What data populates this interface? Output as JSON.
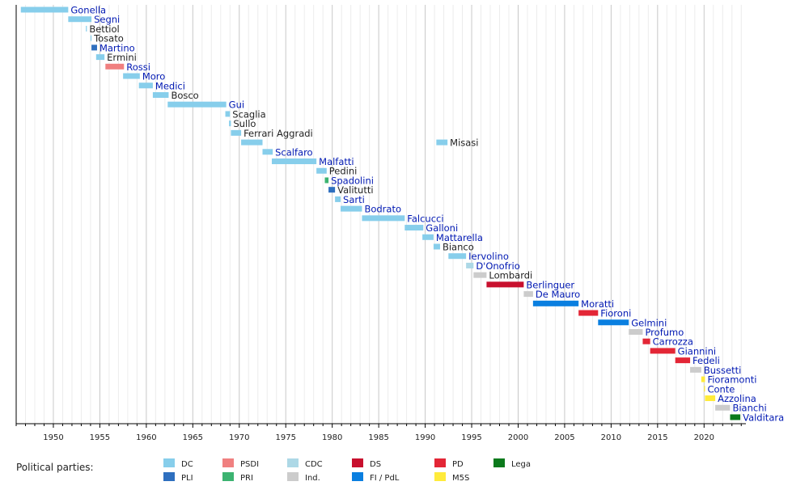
{
  "chart_data": {
    "type": "timeline",
    "xlim": [
      1946,
      2024.5
    ],
    "x_ticks": [
      1950,
      1955,
      1960,
      1965,
      1970,
      1975,
      1980,
      1985,
      1990,
      1995,
      2000,
      2005,
      2010,
      2015,
      2020
    ],
    "grid": true,
    "legend_title": "Political parties:",
    "parties": [
      {
        "key": "DC",
        "label": "DC",
        "color": "#87ceeb"
      },
      {
        "key": "PLI",
        "label": "PLI",
        "color": "#2e6fbf"
      },
      {
        "key": "PSDI",
        "label": "PSDI",
        "color": "#f08080"
      },
      {
        "key": "PRI",
        "label": "PRI",
        "color": "#3cb371"
      },
      {
        "key": "CDC",
        "label": "CDC",
        "color": "#add8e6"
      },
      {
        "key": "Ind",
        "label": "Ind.",
        "color": "#cccccc"
      },
      {
        "key": "DS",
        "label": "DS",
        "color": "#c8102e"
      },
      {
        "key": "FI",
        "label": "FI / PdL",
        "color": "#0a7fe0"
      },
      {
        "key": "PD",
        "label": "PD",
        "color": "#e32636"
      },
      {
        "key": "M5S",
        "label": "M5S",
        "color": "#ffeb3b"
      },
      {
        "key": "Lega",
        "label": "Lega",
        "color": "#0b7a1c"
      }
    ],
    "ministers": [
      {
        "name": "Gonella",
        "start": 1946.5,
        "end": 1951.6,
        "party": "DC",
        "link": true
      },
      {
        "name": "Segni",
        "start": 1951.6,
        "end": 1954.1,
        "party": "DC",
        "link": true
      },
      {
        "name": "Bettiol",
        "start": 1953.5,
        "end": 1953.6,
        "party": "DC",
        "link": false
      },
      {
        "name": "Tosato",
        "start": 1954.0,
        "end": 1954.1,
        "party": "DC",
        "link": false
      },
      {
        "name": "Martino",
        "start": 1954.1,
        "end": 1954.7,
        "party": "PLI",
        "link": true
      },
      {
        "name": "Ermini",
        "start": 1954.6,
        "end": 1955.5,
        "party": "DC",
        "link": false
      },
      {
        "name": "Rossi",
        "start": 1955.6,
        "end": 1957.6,
        "party": "PSDI",
        "link": true
      },
      {
        "name": "Moro",
        "start": 1957.5,
        "end": 1959.3,
        "party": "DC",
        "link": true
      },
      {
        "name": "Medici",
        "start": 1959.2,
        "end": 1960.7,
        "party": "DC",
        "link": true
      },
      {
        "name": "Bosco",
        "start": 1960.7,
        "end": 1962.4,
        "party": "DC",
        "link": false
      },
      {
        "name": "Gui",
        "start": 1962.3,
        "end": 1968.6,
        "party": "DC",
        "link": true
      },
      {
        "name": "Scaglia",
        "start": 1968.5,
        "end": 1969.0,
        "party": "DC",
        "link": false
      },
      {
        "name": "Sullo",
        "start": 1968.9,
        "end": 1969.1,
        "party": "DC",
        "link": false
      },
      {
        "name": "Ferrari Aggradi",
        "start": 1969.1,
        "end": 1970.2,
        "party": "DC",
        "link": false
      },
      {
        "name": "Misasi",
        "start": 1970.2,
        "end": 1972.5,
        "party": "DC",
        "link": false
      },
      {
        "name": "Misasi",
        "start": 1991.2,
        "end": 1992.4,
        "party": "DC",
        "link": false
      },
      {
        "name": "Scalfaro",
        "start": 1972.5,
        "end": 1973.6,
        "party": "DC",
        "link": true
      },
      {
        "name": "Malfatti",
        "start": 1973.5,
        "end": 1978.3,
        "party": "DC",
        "link": true
      },
      {
        "name": "Pedini",
        "start": 1978.3,
        "end": 1979.4,
        "party": "DC",
        "link": false
      },
      {
        "name": "Spadolini",
        "start": 1979.2,
        "end": 1979.6,
        "party": "PRI",
        "link": true
      },
      {
        "name": "Valitutti",
        "start": 1979.6,
        "end": 1980.3,
        "party": "PLI",
        "link": false
      },
      {
        "name": "Sarti",
        "start": 1980.3,
        "end": 1980.9,
        "party": "DC",
        "link": true
      },
      {
        "name": "Bodrato",
        "start": 1980.9,
        "end": 1983.2,
        "party": "DC",
        "link": true
      },
      {
        "name": "Falcucci",
        "start": 1983.2,
        "end": 1987.8,
        "party": "DC",
        "link": true
      },
      {
        "name": "Galloni",
        "start": 1987.8,
        "end": 1989.8,
        "party": "DC",
        "link": true
      },
      {
        "name": "Mattarella",
        "start": 1989.7,
        "end": 1990.9,
        "party": "DC",
        "link": true
      },
      {
        "name": "Bianco",
        "start": 1990.9,
        "end": 1991.6,
        "party": "DC",
        "link": false
      },
      {
        "name": "Iervolino",
        "start": 1992.5,
        "end": 1994.4,
        "party": "DC",
        "link": true
      },
      {
        "name": "D'Onofrio",
        "start": 1994.4,
        "end": 1995.2,
        "party": "CDC",
        "link": true
      },
      {
        "name": "Lombardi",
        "start": 1995.2,
        "end": 1996.6,
        "party": "Ind",
        "link": false
      },
      {
        "name": "Berlinguer",
        "start": 1996.6,
        "end": 2000.6,
        "party": "DS",
        "link": true
      },
      {
        "name": "De Mauro",
        "start": 2000.6,
        "end": 2001.6,
        "party": "Ind",
        "link": true
      },
      {
        "name": "Moratti",
        "start": 2001.6,
        "end": 2006.5,
        "party": "FI",
        "link": true
      },
      {
        "name": "Fioroni",
        "start": 2006.5,
        "end": 2008.6,
        "party": "PD",
        "link": true
      },
      {
        "name": "Gelmini",
        "start": 2008.6,
        "end": 2011.9,
        "party": "FI",
        "link": true
      },
      {
        "name": "Profumo",
        "start": 2011.9,
        "end": 2013.4,
        "party": "Ind",
        "link": true
      },
      {
        "name": "Carrozza",
        "start": 2013.4,
        "end": 2014.2,
        "party": "PD",
        "link": true
      },
      {
        "name": "Giannini",
        "start": 2014.2,
        "end": 2016.9,
        "party": "PD",
        "link": true
      },
      {
        "name": "Fedeli",
        "start": 2016.9,
        "end": 2018.5,
        "party": "PD",
        "link": true
      },
      {
        "name": "Bussetti",
        "start": 2018.5,
        "end": 2019.7,
        "party": "Ind",
        "link": true
      },
      {
        "name": "Fioramonti",
        "start": 2019.7,
        "end": 2020.1,
        "party": "M5S",
        "link": true
      },
      {
        "name": "Conte",
        "start": 2020.0,
        "end": 2020.1,
        "party": "M5S",
        "link": true
      },
      {
        "name": "Azzolina",
        "start": 2020.1,
        "end": 2021.2,
        "party": "M5S",
        "link": true
      },
      {
        "name": "Bianchi",
        "start": 2021.2,
        "end": 2022.8,
        "party": "Ind",
        "link": true
      },
      {
        "name": "Valditara",
        "start": 2022.8,
        "end": 2023.9,
        "party": "Lega",
        "link": true
      }
    ]
  }
}
